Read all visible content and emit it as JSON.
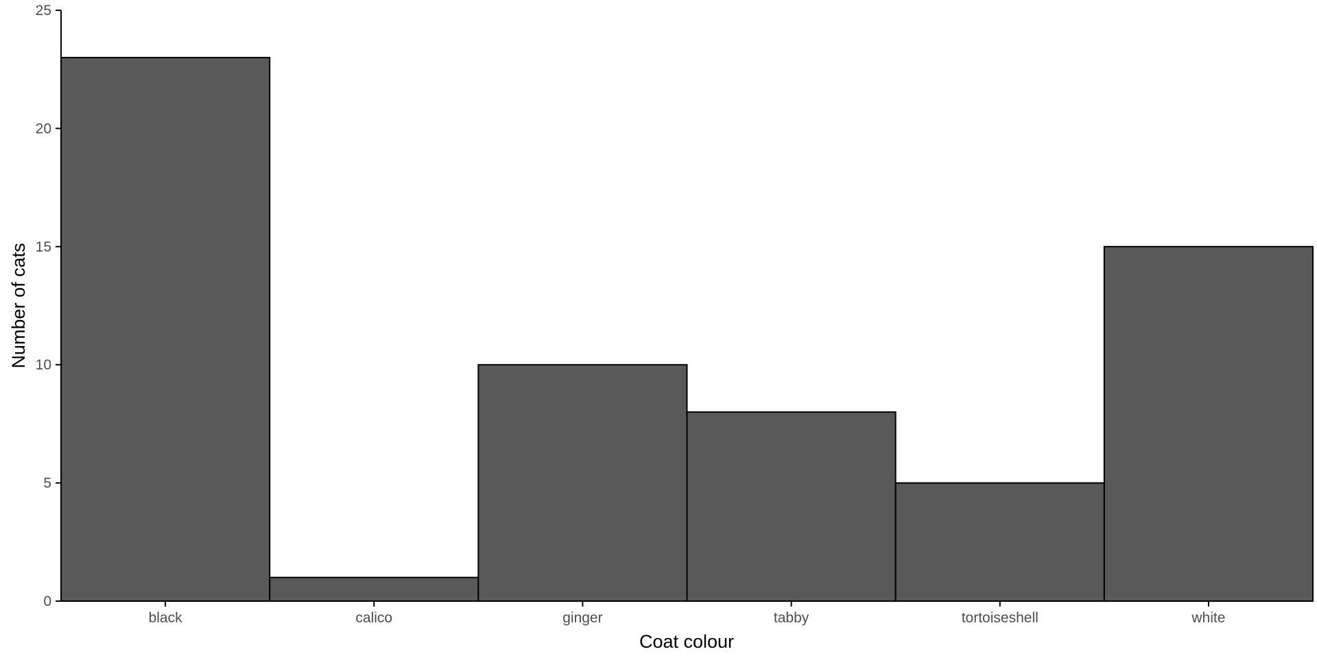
{
  "chart_data": {
    "type": "bar",
    "categories": [
      "black",
      "calico",
      "ginger",
      "tabby",
      "tortoiseshell",
      "white"
    ],
    "values": [
      23,
      1,
      10,
      8,
      5,
      15
    ],
    "xlabel": "Coat colour",
    "ylabel": "Number of cats",
    "ylim": [
      0,
      25
    ],
    "yticks": [
      0,
      5,
      10,
      15,
      20,
      25
    ],
    "grid": false,
    "legend": "none",
    "colors": {
      "bar_fill": "#595959",
      "bar_stroke": "#000000",
      "axis": "#000000",
      "tick_text": "#4d4d4d",
      "background": "#ffffff"
    }
  }
}
